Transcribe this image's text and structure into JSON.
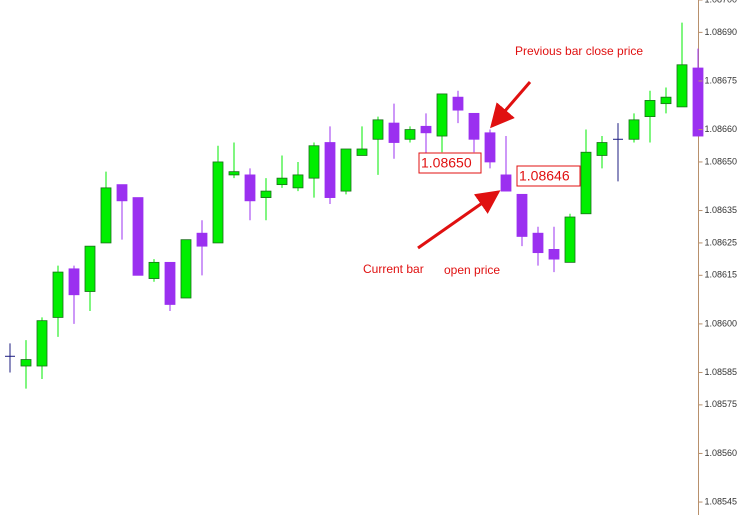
{
  "chart_data": {
    "type": "candlestick",
    "categories": [
      null,
      null,
      null,
      null,
      null,
      null,
      null,
      null,
      null,
      null,
      null,
      null,
      null,
      null,
      null,
      null,
      null,
      null,
      null,
      null,
      null,
      null,
      null,
      null,
      null,
      null,
      null,
      null,
      null,
      null,
      null,
      null,
      null,
      null,
      null,
      null,
      null,
      null,
      null,
      null,
      null,
      null,
      null,
      null
    ],
    "open": [
      1.0859,
      1.08587,
      1.08587,
      1.08602,
      1.08617,
      1.0861,
      1.08625,
      1.08643,
      1.08639,
      1.08614,
      1.08619,
      1.08608,
      1.08628,
      1.08625,
      1.08646,
      1.08646,
      1.08639,
      1.08643,
      1.08642,
      1.08645,
      1.08656,
      1.08641,
      1.08652,
      1.08657,
      1.08662,
      1.08657,
      1.08661,
      1.08658,
      1.0867,
      1.08665,
      1.08659,
      1.08646,
      1.0864,
      1.08628,
      1.08623,
      1.08619,
      1.08634,
      1.08652,
      1.08657,
      1.08657,
      1.08664,
      1.08668,
      1.08667,
      1.08679
    ],
    "high": [
      1.08594,
      1.08595,
      1.08602,
      1.08618,
      1.08618,
      1.08624,
      1.08647,
      1.08643,
      1.08639,
      1.0862,
      1.08619,
      1.08626,
      1.08632,
      1.08655,
      1.08656,
      1.08648,
      1.08645,
      1.08652,
      1.0865,
      1.08656,
      1.08661,
      1.08654,
      1.08661,
      1.08664,
      1.08668,
      1.08661,
      1.08665,
      1.08671,
      1.08672,
      1.08665,
      1.0866,
      1.08658,
      1.0864,
      1.0863,
      1.0863,
      1.08634,
      1.0866,
      1.08658,
      1.08662,
      1.08665,
      1.08672,
      1.08673,
      1.08693,
      1.08685
    ],
    "low": [
      1.08585,
      1.0858,
      1.08583,
      1.08596,
      1.086,
      1.08604,
      1.08625,
      1.08626,
      1.08615,
      1.08613,
      1.08604,
      1.08608,
      1.08615,
      1.08625,
      1.08645,
      1.08632,
      1.08632,
      1.08642,
      1.08641,
      1.08639,
      1.08637,
      1.0864,
      1.08652,
      1.08646,
      1.08651,
      1.08656,
      1.08651,
      1.08653,
      1.08662,
      1.08653,
      1.08648,
      1.08641,
      1.08624,
      1.08618,
      1.08616,
      1.08619,
      1.08634,
      1.08648,
      1.08644,
      1.08656,
      1.08656,
      1.08665,
      1.08667,
      1.08658
    ],
    "close": [
      1.0859,
      1.08589,
      1.08601,
      1.08616,
      1.08609,
      1.08624,
      1.08642,
      1.08638,
      1.08615,
      1.08619,
      1.08606,
      1.08626,
      1.08624,
      1.0865,
      1.08647,
      1.08638,
      1.08641,
      1.08645,
      1.08646,
      1.08655,
      1.08639,
      1.08654,
      1.08654,
      1.08663,
      1.08656,
      1.0866,
      1.08659,
      1.08671,
      1.08666,
      1.08657,
      1.0865,
      1.08641,
      1.08627,
      1.08622,
      1.0862,
      1.08633,
      1.08653,
      1.08656,
      1.08657,
      1.08663,
      1.08669,
      1.0867,
      1.0868,
      1.08658
    ],
    "colors": {
      "up": "#00ee00",
      "down": "#9b30f0",
      "doji": "#1c1c80"
    },
    "ylim": [
      1.08541,
      1.087
    ],
    "yticks": [
      {
        "value": 1.087,
        "label": "1.08700"
      },
      {
        "value": 1.0869,
        "label": "1.08690"
      },
      1.08675,
      {
        "value": 1.0866,
        "label": "1.08660"
      },
      {
        "value": 1.0865,
        "label": "1.08650"
      },
      1.08635,
      1.08625,
      1.08615,
      {
        "value": 1.086,
        "label": "1.08600"
      },
      1.08585,
      1.08575,
      {
        "value": 1.0856,
        "label": "1.08560"
      },
      1.08545
    ],
    "grid": false,
    "annotations": [
      "Previous bar close price",
      "Current bar",
      "open price",
      "1.08650",
      "1.08646"
    ]
  }
}
